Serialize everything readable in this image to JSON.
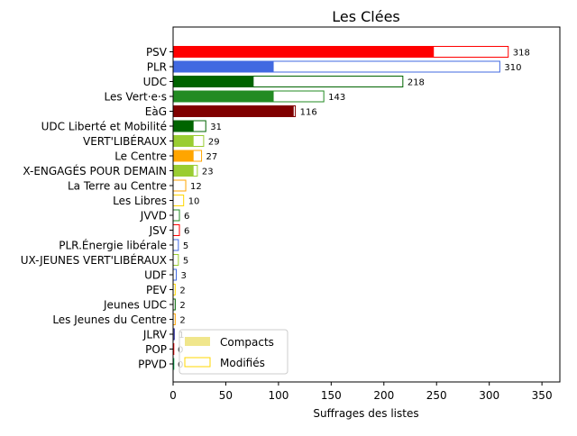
{
  "chart_data": {
    "type": "bar",
    "orientation": "horizontal",
    "title": "Les Clées",
    "xlabel": "Suffrages des listes",
    "ylabel": "",
    "xlim": [
      0,
      367
    ],
    "xticks": [
      0,
      50,
      100,
      150,
      200,
      250,
      300,
      350
    ],
    "grid": false,
    "legend": {
      "placement": "lower-left",
      "entries": [
        {
          "label": "Compacts",
          "style": "filled",
          "color": "#f0e68c"
        },
        {
          "label": "Modifiés",
          "style": "outline",
          "color": "#ffd700"
        }
      ]
    },
    "categories": [
      "PSV",
      "PLR",
      "UDC",
      "Les Vert·e·s",
      "EàG",
      "UDC Liberté et Mobilité",
      "VERT'LIBÉRAUX",
      "Le Centre",
      "X-ENGAGÉS POUR DEMAIN",
      "La Terre au Centre",
      "Les Libres",
      "JVVD",
      "JSV",
      "PLR.Énergie libérale",
      "UX-JEUNES VERT'LIBÉRAUX",
      "UDF",
      "PEV",
      "Jeunes UDC",
      "Les Jeunes du Centre",
      "JLRV",
      "POP",
      "PPVD"
    ],
    "colors": [
      "#ff0000",
      "#4169e1",
      "#006400",
      "#228b22",
      "#800000",
      "#006400",
      "#9acd32",
      "#ffa500",
      "#9acd32",
      "#ffa500",
      "#ffd700",
      "#228b22",
      "#ff0000",
      "#4169e1",
      "#9acd32",
      "#4169e1",
      "#ffd700",
      "#006400",
      "#ffa500",
      "#00008b",
      "#ff0000",
      "#00b050"
    ],
    "series": [
      {
        "name": "Compacts",
        "values": [
          247,
          95,
          76,
          95,
          114,
          19,
          19,
          19,
          19,
          0,
          0,
          0,
          0,
          0,
          0,
          0,
          0,
          0,
          0,
          0,
          0,
          0
        ]
      },
      {
        "name": "Modifiés",
        "values": [
          71,
          215,
          142,
          48,
          2,
          12,
          10,
          8,
          4,
          12,
          10,
          6,
          6,
          5,
          5,
          3,
          2,
          2,
          2,
          1,
          0,
          0
        ]
      }
    ],
    "totals": [
      318,
      310,
      218,
      143,
      116,
      31,
      29,
      27,
      23,
      12,
      10,
      6,
      6,
      5,
      5,
      3,
      2,
      2,
      2,
      1,
      0,
      0
    ]
  }
}
